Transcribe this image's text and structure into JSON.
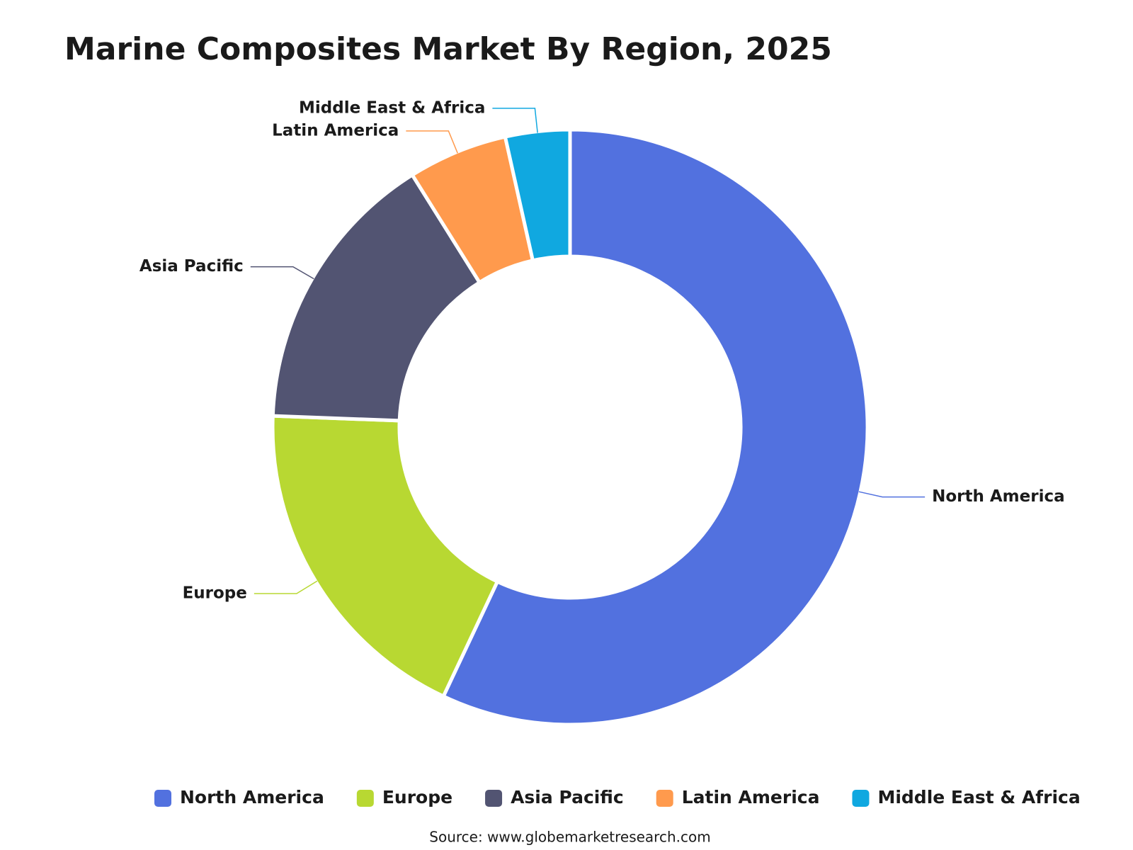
{
  "chart_data": {
    "type": "donut",
    "title": "Marine Composites Market By Region, 2025",
    "categories": [
      "North America",
      "Europe",
      "Asia Pacific",
      "Latin America",
      "Middle East & Africa"
    ],
    "values": [
      57,
      18.6,
      15.5,
      5.4,
      3.5
    ],
    "colors": [
      "#5271df",
      "#b8d832",
      "#525472",
      "#ff9a4d",
      "#10a8e0"
    ],
    "legend": "bottom",
    "source": "Source: www.globemarketresearch.com"
  }
}
